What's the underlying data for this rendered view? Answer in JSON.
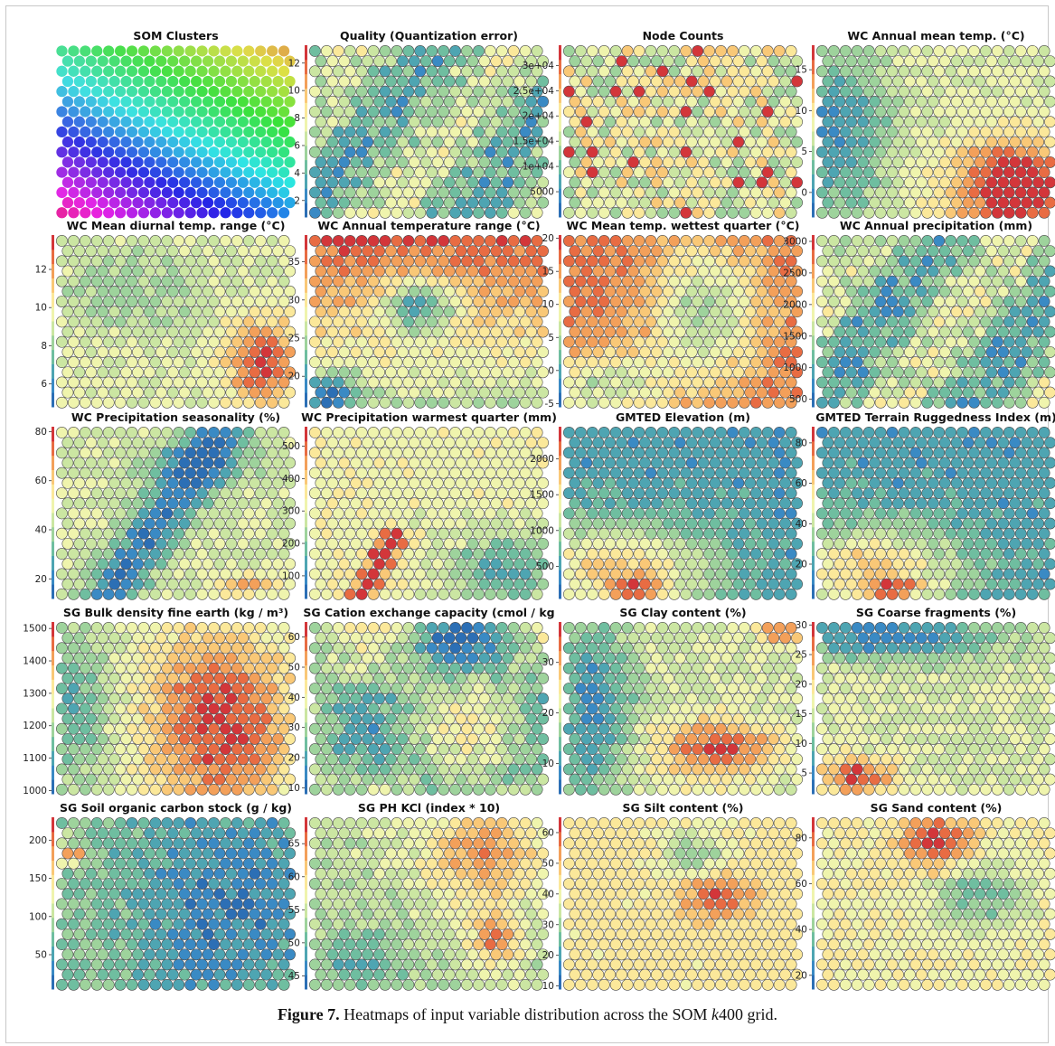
{
  "caption": {
    "label": "Figure 7.",
    "text_before": " Heatmaps of input variable distribution across the SOM ",
    "k_italic": "k",
    "text_after": "400 grid."
  },
  "colors": {
    "scale": [
      "#2c6fb5",
      "#3a8ac4",
      "#4ea5b2",
      "#6fbea0",
      "#9ed39c",
      "#cbe6a2",
      "#eff4ad",
      "#fbe89a",
      "#f9c877",
      "#f3a05a",
      "#e86c43",
      "#d3363a"
    ],
    "hex_stroke": "#4a4a4a"
  },
  "chart_data": [
    {
      "type": "heatmap",
      "title": "SOM Clusters",
      "ticks": [],
      "ylim": [
        0,
        1
      ],
      "pattern": "clusters"
    },
    {
      "type": "heatmap",
      "title": "Quality (Quantization error)",
      "ticks": [
        "2",
        "4",
        "6",
        "8",
        "10",
        "12"
      ],
      "tick_values": [
        2,
        4,
        6,
        8,
        10,
        12
      ],
      "ylim": [
        0.8,
        13.3
      ],
      "pattern": "low_mottled"
    },
    {
      "type": "heatmap",
      "title": "Node Counts",
      "ticks": [
        "5000",
        "1e+04",
        "1.5e+04",
        "2e+04",
        "2.5e+04",
        "3e+04"
      ],
      "tick_values": [
        5000,
        10000,
        15000,
        20000,
        25000,
        30000
      ],
      "ylim": [
        0,
        34000
      ],
      "pattern": "random_mid"
    },
    {
      "type": "heatmap",
      "title": "WC Annual mean temp. (°C)",
      "ticks": [
        "0",
        "5",
        "10",
        "15"
      ],
      "tick_values": [
        0,
        5,
        10,
        15
      ],
      "ylim": [
        -3,
        18
      ],
      "pattern": "bottom_right_hot"
    },
    {
      "type": "heatmap",
      "title": "WC Mean diurnal temp. range (°C)",
      "ticks": [
        "6",
        "8",
        "10",
        "12"
      ],
      "tick_values": [
        6,
        8,
        10,
        12
      ],
      "ylim": [
        4.8,
        13.8
      ],
      "pattern": "br_hot_mild"
    },
    {
      "type": "heatmap",
      "title": "WC Annual temperature range (°C)",
      "ticks": [
        "20",
        "25",
        "30",
        "35"
      ],
      "tick_values": [
        20,
        25,
        30,
        35
      ],
      "ylim": [
        16,
        38.5
      ],
      "pattern": "top_hot"
    },
    {
      "type": "heatmap",
      "title": "WC Mean temp. wettest quarter (°C)",
      "ticks": [
        "-5",
        "0",
        "5",
        "10",
        "15",
        "20"
      ],
      "tick_values": [
        -5,
        0,
        5,
        10,
        15,
        20
      ],
      "ylim": [
        -5.5,
        20.5
      ],
      "pattern": "ring_hot"
    },
    {
      "type": "heatmap",
      "title": "WC Annual precipitation (mm)",
      "ticks": [
        "500",
        "1000",
        "1500",
        "2000",
        "2500",
        "3000"
      ],
      "tick_values": [
        500,
        1000,
        1500,
        2000,
        2500,
        3000
      ],
      "ylim": [
        380,
        3100
      ],
      "pattern": "low_mottled"
    },
    {
      "type": "heatmap",
      "title": "WC Precipitation seasonality (%)",
      "ticks": [
        "20",
        "40",
        "60",
        "80"
      ],
      "tick_values": [
        20,
        40,
        60,
        80
      ],
      "ylim": [
        12,
        82
      ],
      "pattern": "diag_cool"
    },
    {
      "type": "heatmap",
      "title": "WC Precipitation warmest quarter (mm)",
      "ticks": [
        "100",
        "200",
        "300",
        "400",
        "500"
      ],
      "tick_values": [
        100,
        200,
        300,
        400,
        500
      ],
      "ylim": [
        30,
        560
      ],
      "pattern": "mostly_light"
    },
    {
      "type": "heatmap",
      "title": "GMTED Elevation (m)",
      "ticks": [
        "500",
        "1000",
        "1500",
        "2000"
      ],
      "tick_values": [
        500,
        1000,
        1500,
        2000
      ],
      "ylim": [
        50,
        2450
      ],
      "pattern": "top_cool"
    },
    {
      "type": "heatmap",
      "title": "GMTED Terrain Ruggedness Index (m)",
      "ticks": [
        "20",
        "40",
        "60",
        "80"
      ],
      "tick_values": [
        20,
        40,
        60,
        80
      ],
      "ylim": [
        3,
        88
      ],
      "pattern": "top_cool"
    },
    {
      "type": "heatmap",
      "title": "SG Bulk density fine earth (kg / m³)",
      "ticks": [
        "1000",
        "1100",
        "1200",
        "1300",
        "1400",
        "1500"
      ],
      "tick_values": [
        1000,
        1100,
        1200,
        1300,
        1400,
        1500
      ],
      "ylim": [
        990,
        1520
      ],
      "pattern": "right_hot"
    },
    {
      "type": "heatmap",
      "title": "SG Cation exchange capacity (cmol / kg",
      "ticks": [
        "10",
        "20",
        "30",
        "40",
        "50",
        "60"
      ],
      "tick_values": [
        10,
        20,
        30,
        40,
        50,
        60
      ],
      "ylim": [
        8,
        65
      ],
      "pattern": "mixed_cool"
    },
    {
      "type": "heatmap",
      "title": "SG Clay content (%)",
      "ticks": [
        "10",
        "20",
        "30"
      ],
      "tick_values": [
        10,
        20,
        30
      ],
      "ylim": [
        4,
        38
      ],
      "pattern": "bottom_hot"
    },
    {
      "type": "heatmap",
      "title": "SG Coarse fragments (%)",
      "ticks": [
        "5",
        "10",
        "15",
        "20",
        "25",
        "30"
      ],
      "tick_values": [
        5,
        10,
        15,
        20,
        25,
        30
      ],
      "ylim": [
        1.5,
        30.5
      ],
      "pattern": "top_cool_bl_hot"
    },
    {
      "type": "heatmap",
      "title": "SG Soil organic carbon stock (g / kg)",
      "ticks": [
        "50",
        "100",
        "150",
        "200"
      ],
      "tick_values": [
        50,
        100,
        150,
        200
      ],
      "ylim": [
        5,
        230
      ],
      "pattern": "right_cool"
    },
    {
      "type": "heatmap",
      "title": "SG PH KCl (index * 10)",
      "ticks": [
        "45",
        "50",
        "55",
        "60",
        "65"
      ],
      "tick_values": [
        45,
        50,
        55,
        60,
        65
      ],
      "ylim": [
        43,
        69
      ],
      "pattern": "right_warm"
    },
    {
      "type": "heatmap",
      "title": "SG Silt content (%)",
      "ticks": [
        "10",
        "20",
        "30",
        "40",
        "50",
        "60"
      ],
      "tick_values": [
        10,
        20,
        30,
        40,
        50,
        60
      ],
      "ylim": [
        9,
        65
      ],
      "pattern": "light_warm"
    },
    {
      "type": "heatmap",
      "title": "SG Sand content (%)",
      "ticks": [
        "20",
        "40",
        "60",
        "80"
      ],
      "tick_values": [
        20,
        40,
        60,
        80
      ],
      "ylim": [
        14,
        89
      ],
      "pattern": "top_mid_hot"
    }
  ]
}
